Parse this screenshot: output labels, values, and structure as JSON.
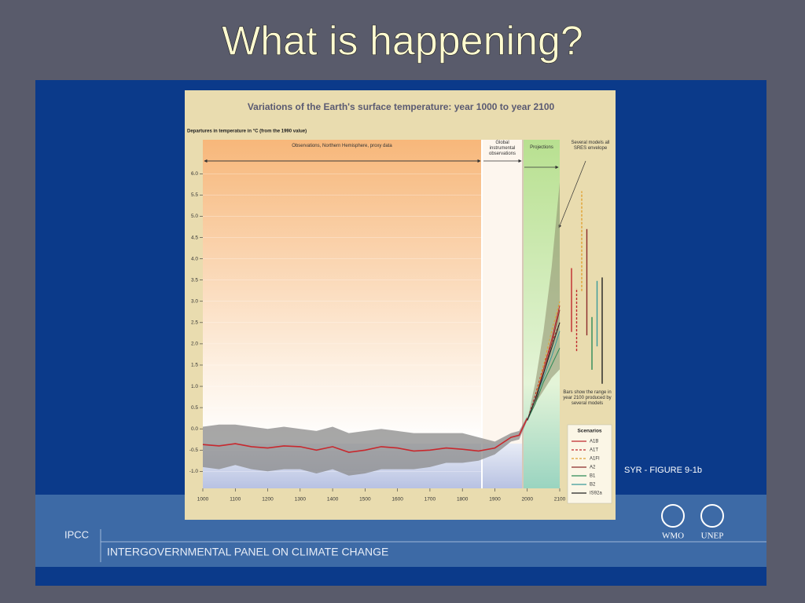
{
  "slide": {
    "title": "What is happening?",
    "figure_ref": "SYR - FIGURE 9-1b",
    "org_short": "IPCC",
    "org_long": "INTERGOVERNMENTAL PANEL ON CLIMATE CHANGE",
    "logos": [
      "WMO",
      "UNEP"
    ]
  },
  "chart_data": {
    "type": "line",
    "title": "Variations of the Earth's surface temperature: year 1000 to year 2100",
    "y_label": "Departures in temperature in °C (from the 1990 value)",
    "annotations": {
      "proxy": "Observations, Northern Hemisphere, proxy data",
      "instrumental": "Global instrumental observations",
      "projections": "Projections",
      "envelope": "Several models all SRES envelope",
      "bars": "Bars show the range in year 2100 produced by several models"
    },
    "legend_title": "Scenarios",
    "xlim": [
      1000,
      2100
    ],
    "xticks": [
      1000,
      1100,
      1200,
      1300,
      1400,
      1500,
      1600,
      1700,
      1800,
      1900,
      2000,
      2100
    ],
    "ylim": [
      -1.4,
      6.8
    ],
    "yticks": [
      {
        "value": 6,
        "label": "6.0"
      },
      5.5,
      {
        "value": 5,
        "label": "5.0"
      },
      4.5,
      {
        "value": 4,
        "label": "4.0"
      },
      3.5,
      {
        "value": 3,
        "label": "3.0"
      },
      2.5,
      {
        "value": 2,
        "label": "2.0"
      },
      1.5,
      {
        "value": 1,
        "label": "1.0"
      },
      0.5,
      {
        "value": 0,
        "label": "0.0"
      },
      -0.5,
      {
        "value": -1,
        "label": "-1.0"
      }
    ],
    "observed": {
      "color": "#c8282d",
      "band_color": "#8a8a8a",
      "x": [
        1000,
        1050,
        1100,
        1150,
        1200,
        1250,
        1300,
        1350,
        1400,
        1450,
        1500,
        1550,
        1600,
        1650,
        1700,
        1750,
        1800,
        1850,
        1900,
        1950,
        1975,
        2000
      ],
      "values": [
        -0.37,
        -0.4,
        -0.35,
        -0.42,
        -0.45,
        -0.4,
        -0.42,
        -0.5,
        -0.42,
        -0.55,
        -0.5,
        -0.42,
        -0.45,
        -0.52,
        -0.5,
        -0.45,
        -0.48,
        -0.52,
        -0.45,
        -0.2,
        -0.15,
        0.25
      ],
      "low": [
        -0.9,
        -0.95,
        -0.85,
        -0.95,
        -1.0,
        -0.95,
        -0.95,
        -1.05,
        -0.95,
        -1.1,
        -1.05,
        -0.95,
        -0.95,
        -0.95,
        -0.9,
        -0.8,
        -0.8,
        -0.75,
        -0.6,
        -0.3,
        -0.25,
        0.2
      ],
      "high": [
        0.05,
        0.1,
        0.1,
        0.05,
        0.0,
        0.05,
        0.0,
        -0.05,
        0.05,
        -0.1,
        -0.05,
        0.0,
        -0.05,
        -0.1,
        -0.1,
        -0.1,
        -0.1,
        -0.2,
        -0.3,
        -0.1,
        -0.05,
        0.3
      ]
    },
    "envelope": {
      "color": "#8c8c6a",
      "x": [
        2000,
        2025,
        2050,
        2075,
        2100
      ],
      "low": [
        0.2,
        0.6,
        0.9,
        1.2,
        1.4
      ],
      "high": [
        0.2,
        1.1,
        2.3,
        3.8,
        5.8
      ]
    },
    "series": [
      {
        "name": "A1B",
        "color": "#c0282d",
        "dash": false,
        "x": [
          2000,
          2025,
          2050,
          2075,
          2100
        ],
        "values": [
          0.2,
          0.7,
          1.4,
          2.1,
          2.9
        ],
        "range": [
          2.28,
          3.78
        ]
      },
      {
        "name": "A1T",
        "color": "#c0282d",
        "dash": true,
        "x": [
          2000,
          2025,
          2050,
          2075,
          2100
        ],
        "values": [
          0.2,
          0.8,
          1.5,
          2.0,
          2.5
        ],
        "range": [
          1.83,
          3.31
        ]
      },
      {
        "name": "A1FI",
        "color": "#e0a030",
        "dash": true,
        "x": [
          2000,
          2025,
          2050,
          2075,
          2100
        ],
        "values": [
          0.2,
          0.7,
          1.5,
          2.3,
          3.0
        ],
        "range": [
          3.24,
          5.59
        ]
      },
      {
        "name": "A2",
        "color": "#8b2a2a",
        "dash": false,
        "x": [
          2000,
          2025,
          2050,
          2075,
          2100
        ],
        "values": [
          0.2,
          0.6,
          1.3,
          2.0,
          2.8
        ],
        "range": [
          2.2,
          4.7
        ]
      },
      {
        "name": "B1",
        "color": "#2e8b57",
        "dash": false,
        "x": [
          2000,
          2025,
          2050,
          2075,
          2100
        ],
        "values": [
          0.2,
          0.6,
          1.1,
          1.5,
          1.9
        ],
        "range": [
          1.39,
          2.63
        ]
      },
      {
        "name": "B2",
        "color": "#3a9a9a",
        "dash": false,
        "x": [
          2000,
          2025,
          2050,
          2075,
          2100
        ],
        "values": [
          0.2,
          0.7,
          1.2,
          1.7,
          2.3
        ],
        "range": [
          1.94,
          3.48
        ]
      },
      {
        "name": "IS92a",
        "color": "#222222",
        "dash": false,
        "x": [
          2000,
          2025,
          2050,
          2075,
          2100
        ],
        "values": [
          0.2,
          0.7,
          1.3,
          1.9,
          2.5
        ],
        "range": [
          1.06,
          3.56
        ]
      }
    ]
  }
}
